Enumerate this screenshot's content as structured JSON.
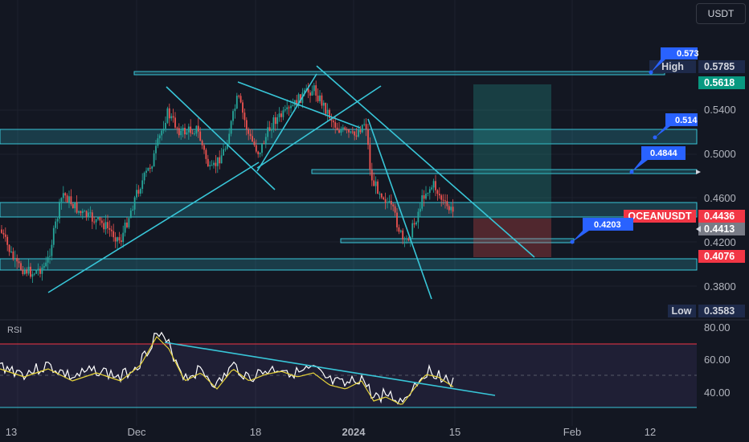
{
  "header": {
    "currency_label": "USDT"
  },
  "chart_data": {
    "type": "candlestick",
    "symbol_label": "OCEANUSDT",
    "x_ticks": [
      "13",
      "Dec",
      "18",
      "2024",
      "15",
      "Feb",
      "12"
    ],
    "price_axis": {
      "ticks": [
        "0.5400",
        "0.5000",
        "0.4600",
        "0.4200",
        "0.3800"
      ],
      "ylim": [
        0.3583,
        0.5785
      ]
    },
    "price_tags": [
      {
        "label": "High",
        "value": "0.5785"
      },
      {
        "label": "",
        "value": "0.5618"
      },
      {
        "label": "OCEANUSDT",
        "value": "0.4436"
      },
      {
        "label": "",
        "value": "0.4413"
      },
      {
        "label": "",
        "value": "0.4076"
      },
      {
        "label": "Low",
        "value": "0.3583"
      }
    ],
    "callouts": [
      "0.573",
      "0.514",
      "0.4844",
      "0.4203"
    ],
    "rsi": {
      "label": "RSI",
      "ticks": [
        "80.00",
        "60.00",
        "40.00"
      ],
      "ylim": [
        30,
        80
      ]
    },
    "colors": {
      "up": "#26a69a",
      "down": "#ef5350",
      "trend": "#38c6d8",
      "ma": "#e6d33a",
      "tag_blue": "#2962ff"
    }
  }
}
